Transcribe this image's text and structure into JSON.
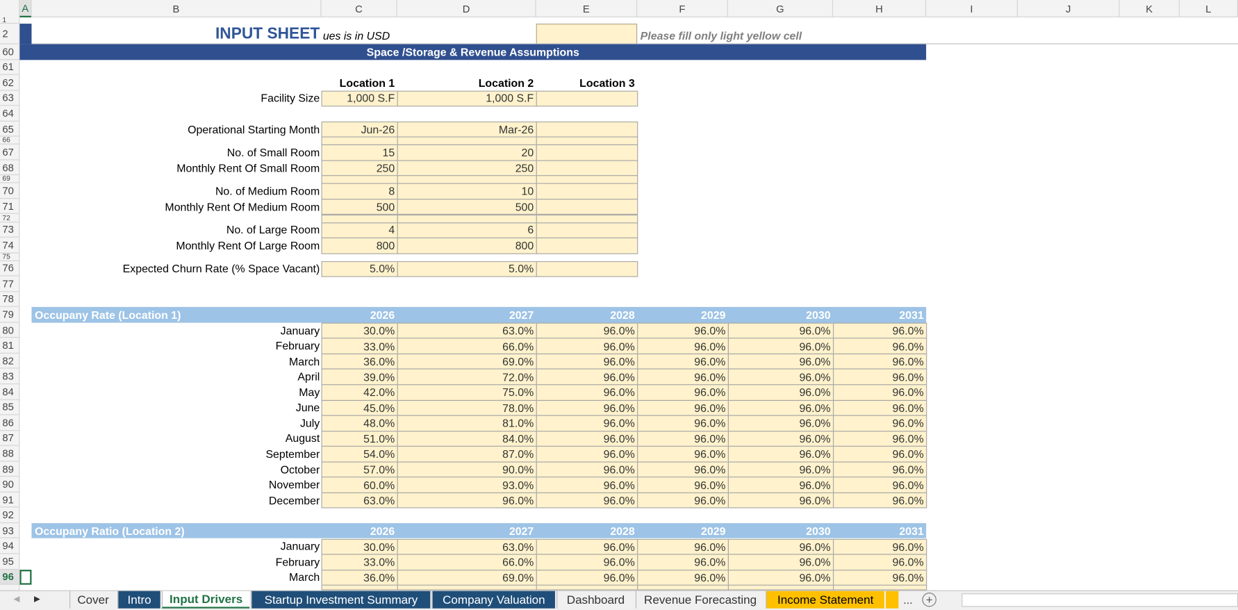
{
  "columns": [
    "A",
    "B",
    "C",
    "D",
    "E",
    "F",
    "G",
    "H",
    "I",
    "J",
    "K",
    "L"
  ],
  "row_numbers": [
    1,
    2,
    60,
    61,
    62,
    63,
    64,
    65,
    66,
    67,
    68,
    69,
    70,
    71,
    72,
    73,
    74,
    75,
    76,
    77,
    78,
    79,
    80,
    81,
    82,
    83,
    84,
    85,
    86,
    87,
    88,
    89,
    90,
    91,
    92,
    93,
    94,
    95,
    96
  ],
  "header": {
    "title": "INPUT SHEET",
    "subtitle": "ues is in USD",
    "note": "Please fill only light yellow cell"
  },
  "section_title": "Space /Storage & Revenue Assumptions",
  "locations": [
    "Location 1",
    "Location 2",
    "Location 3"
  ],
  "assumptions": [
    {
      "label": "Facility Size",
      "values": [
        "1,000 S.F",
        "1,000 S.F",
        null
      ]
    },
    {
      "label": "Operational Starting Month",
      "values": [
        "Jun-26",
        "Mar-26",
        null
      ]
    },
    {
      "label": "No. of Small Room",
      "values": [
        "15",
        "20",
        null
      ]
    },
    {
      "label": "Monthly Rent Of Small Room",
      "values": [
        "250",
        "250",
        null
      ]
    },
    {
      "label": "No. of Medium Room",
      "values": [
        "8",
        "10",
        null
      ]
    },
    {
      "label": "Monthly Rent Of Medium Room",
      "values": [
        "500",
        "500",
        null
      ]
    },
    {
      "label": "No. of Large Room",
      "values": [
        "4",
        "6",
        null
      ]
    },
    {
      "label": "Monthly Rent Of Large Room",
      "values": [
        "800",
        "800",
        null
      ]
    },
    {
      "label": "Expected Churn Rate (% Space Vacant)",
      "values": [
        "5.0%",
        "5.0%",
        null
      ]
    }
  ],
  "occupancy_tables": [
    {
      "title": "Occupany Rate (Location 1)",
      "years": [
        2026,
        2027,
        2028,
        2029,
        2030,
        2031
      ],
      "rows": [
        {
          "month": "January",
          "values": [
            "30.0%",
            "63.0%",
            "96.0%",
            "96.0%",
            "96.0%",
            "96.0%"
          ]
        },
        {
          "month": "February",
          "values": [
            "33.0%",
            "66.0%",
            "96.0%",
            "96.0%",
            "96.0%",
            "96.0%"
          ]
        },
        {
          "month": "March",
          "values": [
            "36.0%",
            "69.0%",
            "96.0%",
            "96.0%",
            "96.0%",
            "96.0%"
          ]
        },
        {
          "month": "April",
          "values": [
            "39.0%",
            "72.0%",
            "96.0%",
            "96.0%",
            "96.0%",
            "96.0%"
          ]
        },
        {
          "month": "May",
          "values": [
            "42.0%",
            "75.0%",
            "96.0%",
            "96.0%",
            "96.0%",
            "96.0%"
          ]
        },
        {
          "month": "June",
          "values": [
            "45.0%",
            "78.0%",
            "96.0%",
            "96.0%",
            "96.0%",
            "96.0%"
          ]
        },
        {
          "month": "July",
          "values": [
            "48.0%",
            "81.0%",
            "96.0%",
            "96.0%",
            "96.0%",
            "96.0%"
          ]
        },
        {
          "month": "August",
          "values": [
            "51.0%",
            "84.0%",
            "96.0%",
            "96.0%",
            "96.0%",
            "96.0%"
          ]
        },
        {
          "month": "September",
          "values": [
            "54.0%",
            "87.0%",
            "96.0%",
            "96.0%",
            "96.0%",
            "96.0%"
          ]
        },
        {
          "month": "October",
          "values": [
            "57.0%",
            "90.0%",
            "96.0%",
            "96.0%",
            "96.0%",
            "96.0%"
          ]
        },
        {
          "month": "November",
          "values": [
            "60.0%",
            "93.0%",
            "96.0%",
            "96.0%",
            "96.0%",
            "96.0%"
          ]
        },
        {
          "month": "December",
          "values": [
            "63.0%",
            "96.0%",
            "96.0%",
            "96.0%",
            "96.0%",
            "96.0%"
          ]
        }
      ]
    },
    {
      "title": "Occupany Ratio (Location 2)",
      "years": [
        2026,
        2027,
        2028,
        2029,
        2030,
        2031
      ],
      "rows": [
        {
          "month": "January",
          "values": [
            "30.0%",
            "63.0%",
            "96.0%",
            "96.0%",
            "96.0%",
            "96.0%"
          ]
        },
        {
          "month": "February",
          "values": [
            "33.0%",
            "66.0%",
            "96.0%",
            "96.0%",
            "96.0%",
            "96.0%"
          ]
        },
        {
          "month": "March",
          "values": [
            "36.0%",
            "69.0%",
            "96.0%",
            "96.0%",
            "96.0%",
            "96.0%"
          ]
        }
      ]
    }
  ],
  "tabs": [
    "Cover",
    "Intro",
    "Input Drivers",
    "Startup Investment Summary",
    "Company Valuation",
    "Dashboard",
    "Revenue Forecasting",
    "Income Statement"
  ],
  "more_tabs": "..."
}
